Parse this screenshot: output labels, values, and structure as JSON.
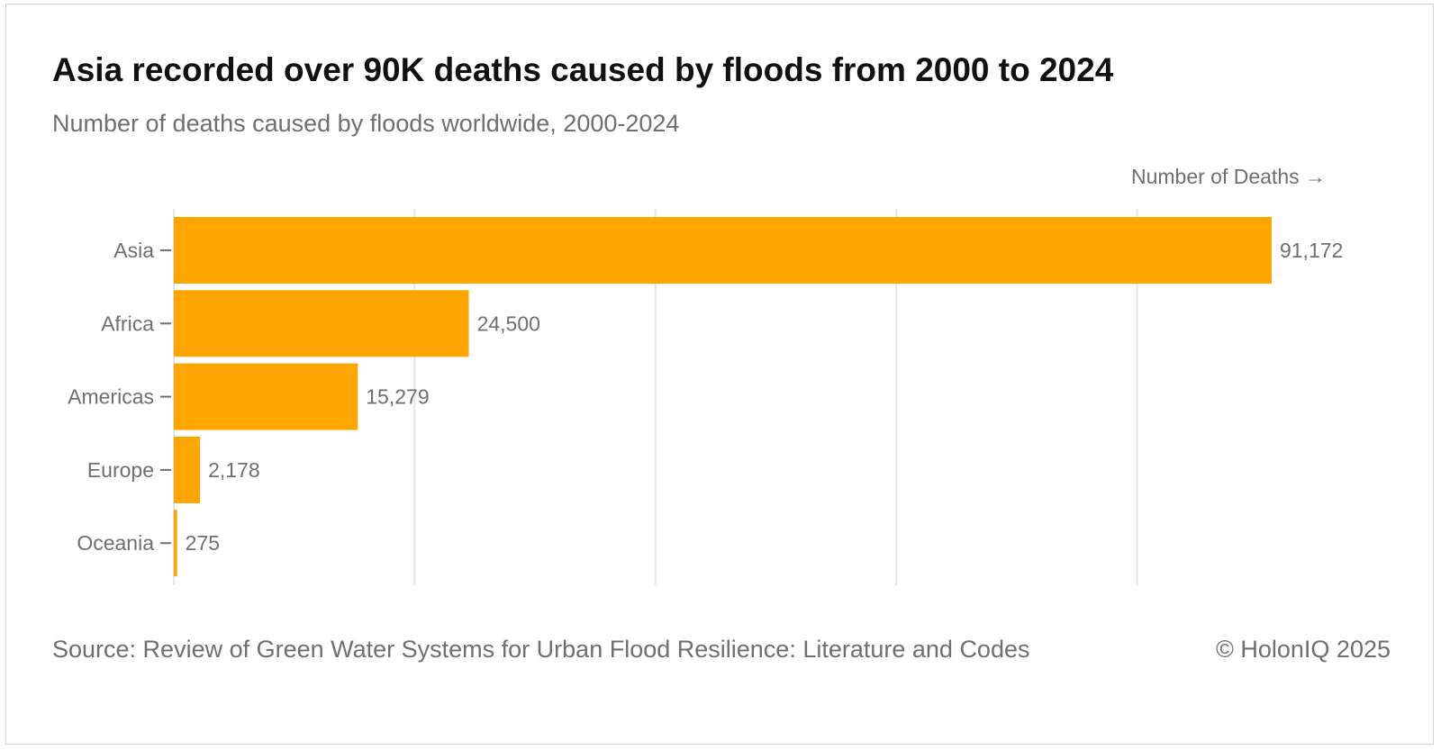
{
  "header": {
    "title": "Asia recorded over 90K deaths caused by floods from 2000 to 2024",
    "subtitle": "Number of deaths caused by floods worldwide, 2000-2024"
  },
  "footer": {
    "source": "Source: Review of Green Water Systems for Urban Flood Resilience: Literature and Codes",
    "copyright": "© HolonIQ 2025"
  },
  "chart_data": {
    "type": "bar",
    "orientation": "horizontal",
    "title": "Asia recorded over 90K deaths caused by floods from 2000 to 2024",
    "subtitle": "Number of deaths caused by floods worldwide, 2000-2024",
    "xlabel": "Number of Deaths →",
    "ylabel": "",
    "categories": [
      "Asia",
      "Africa",
      "Americas",
      "Europe",
      "Oceania"
    ],
    "values": [
      91172,
      24500,
      15279,
      2178,
      275
    ],
    "value_labels": [
      "91,172",
      "24,500",
      "15,279",
      "2,178",
      "275"
    ],
    "xlim": [
      0,
      100000
    ],
    "gridlines": [
      0,
      20000,
      40000,
      60000,
      80000
    ],
    "grid": true,
    "bar_color": "#FFA500",
    "grid_color": "#e6e6e6"
  }
}
